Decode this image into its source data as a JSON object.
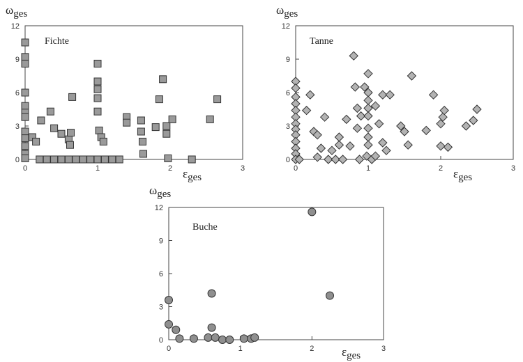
{
  "axes": {
    "y_symbol": "ω",
    "y_sub": "ges",
    "x_symbol": "ε",
    "x_sub": "ges"
  },
  "chart_data": [
    {
      "type": "scatter",
      "title": "Fichte",
      "marker": "square",
      "xlim": [
        0,
        3
      ],
      "ylim": [
        0,
        12
      ],
      "xticks": [
        0,
        1,
        2,
        3
      ],
      "yticks": [
        0,
        3,
        6,
        9,
        12
      ],
      "xlabel": "εges",
      "ylabel": "ωges",
      "points": [
        [
          0.0,
          10.5
        ],
        [
          0.0,
          9.2
        ],
        [
          0.0,
          8.6
        ],
        [
          0.0,
          6.0
        ],
        [
          0.0,
          4.8
        ],
        [
          0.0,
          4.2
        ],
        [
          0.0,
          3.8
        ],
        [
          0.0,
          2.5
        ],
        [
          0.0,
          1.9
        ],
        [
          0.0,
          1.2
        ],
        [
          0.0,
          0.5
        ],
        [
          0.0,
          0.1
        ],
        [
          0.1,
          2.0
        ],
        [
          0.15,
          1.6
        ],
        [
          0.22,
          3.5
        ],
        [
          0.35,
          4.3
        ],
        [
          0.4,
          2.8
        ],
        [
          0.5,
          2.3
        ],
        [
          0.6,
          1.8
        ],
        [
          0.62,
          1.3
        ],
        [
          0.63,
          2.4
        ],
        [
          0.65,
          5.6
        ],
        [
          0.2,
          0.0
        ],
        [
          0.3,
          0.0
        ],
        [
          0.4,
          0.0
        ],
        [
          0.5,
          0.0
        ],
        [
          0.6,
          0.0
        ],
        [
          0.7,
          0.0
        ],
        [
          0.8,
          0.0
        ],
        [
          0.9,
          0.0
        ],
        [
          1.0,
          0.0
        ],
        [
          1.1,
          0.0
        ],
        [
          1.2,
          0.0
        ],
        [
          1.3,
          0.0
        ],
        [
          1.0,
          8.6
        ],
        [
          1.0,
          7.0
        ],
        [
          1.0,
          6.3
        ],
        [
          1.0,
          5.5
        ],
        [
          1.0,
          4.3
        ],
        [
          1.02,
          2.6
        ],
        [
          1.05,
          2.0
        ],
        [
          1.08,
          1.6
        ],
        [
          1.4,
          3.8
        ],
        [
          1.4,
          3.3
        ],
        [
          1.6,
          3.5
        ],
        [
          1.6,
          2.5
        ],
        [
          1.62,
          1.6
        ],
        [
          1.63,
          0.5
        ],
        [
          1.8,
          2.9
        ],
        [
          1.85,
          5.4
        ],
        [
          1.9,
          7.2
        ],
        [
          1.95,
          3.0
        ],
        [
          1.95,
          2.3
        ],
        [
          1.97,
          0.1
        ],
        [
          2.03,
          3.6
        ],
        [
          2.3,
          0.0
        ],
        [
          2.55,
          3.6
        ],
        [
          2.65,
          5.4
        ]
      ]
    },
    {
      "type": "scatter",
      "title": "Tanne",
      "marker": "diamond",
      "xlim": [
        0,
        3
      ],
      "ylim": [
        0,
        12
      ],
      "xticks": [
        0,
        1,
        2,
        3
      ],
      "yticks": [
        0,
        3,
        6,
        9,
        12
      ],
      "xlabel": "εges",
      "ylabel": "ωges",
      "points": [
        [
          0.0,
          7.0
        ],
        [
          0.0,
          6.4
        ],
        [
          0.0,
          5.6
        ],
        [
          0.0,
          5.0
        ],
        [
          0.0,
          4.4
        ],
        [
          0.0,
          3.8
        ],
        [
          0.0,
          3.2
        ],
        [
          0.0,
          2.7
        ],
        [
          0.0,
          2.2
        ],
        [
          0.0,
          1.6
        ],
        [
          0.0,
          1.0
        ],
        [
          0.0,
          0.5
        ],
        [
          0.0,
          0.0
        ],
        [
          0.05,
          0.0
        ],
        [
          0.15,
          4.4
        ],
        [
          0.2,
          5.8
        ],
        [
          0.25,
          2.5
        ],
        [
          0.3,
          2.2
        ],
        [
          0.3,
          0.2
        ],
        [
          0.35,
          1.0
        ],
        [
          0.4,
          3.8
        ],
        [
          0.45,
          0.0
        ],
        [
          0.5,
          0.8
        ],
        [
          0.55,
          0.0
        ],
        [
          0.6,
          1.3
        ],
        [
          0.6,
          2.0
        ],
        [
          0.65,
          0.0
        ],
        [
          0.7,
          3.6
        ],
        [
          0.75,
          1.2
        ],
        [
          0.8,
          9.3
        ],
        [
          0.82,
          6.5
        ],
        [
          0.85,
          4.6
        ],
        [
          0.85,
          2.8
        ],
        [
          0.88,
          0.0
        ],
        [
          0.9,
          3.9
        ],
        [
          0.95,
          6.5
        ],
        [
          0.98,
          0.3
        ],
        [
          1.0,
          7.7
        ],
        [
          1.0,
          6.0
        ],
        [
          1.0,
          5.3
        ],
        [
          1.0,
          4.6
        ],
        [
          1.0,
          3.9
        ],
        [
          1.0,
          2.8
        ],
        [
          1.0,
          2.0
        ],
        [
          1.0,
          1.3
        ],
        [
          1.05,
          0.0
        ],
        [
          1.1,
          0.3
        ],
        [
          1.1,
          4.8
        ],
        [
          1.15,
          3.2
        ],
        [
          1.2,
          1.5
        ],
        [
          1.2,
          5.8
        ],
        [
          1.25,
          0.8
        ],
        [
          1.3,
          5.8
        ],
        [
          1.45,
          3.0
        ],
        [
          1.5,
          2.5
        ],
        [
          1.55,
          1.3
        ],
        [
          1.6,
          7.5
        ],
        [
          1.8,
          2.6
        ],
        [
          1.9,
          5.8
        ],
        [
          2.0,
          1.2
        ],
        [
          2.0,
          3.2
        ],
        [
          2.03,
          3.8
        ],
        [
          2.05,
          4.4
        ],
        [
          2.1,
          1.1
        ],
        [
          2.35,
          3.0
        ],
        [
          2.45,
          3.5
        ],
        [
          2.5,
          4.5
        ]
      ]
    },
    {
      "type": "scatter",
      "title": "Buche",
      "marker": "circle",
      "xlim": [
        0,
        3
      ],
      "ylim": [
        0,
        12
      ],
      "xticks": [
        0,
        1,
        2,
        3
      ],
      "yticks": [
        0,
        3,
        6,
        9,
        12
      ],
      "xlabel": "εges",
      "ylabel": "ωges",
      "points": [
        [
          0.0,
          3.6
        ],
        [
          0.0,
          1.4
        ],
        [
          0.1,
          0.9
        ],
        [
          0.15,
          0.1
        ],
        [
          0.35,
          0.1
        ],
        [
          0.55,
          0.2
        ],
        [
          0.6,
          4.2
        ],
        [
          0.6,
          1.1
        ],
        [
          0.65,
          0.2
        ],
        [
          0.75,
          0.0
        ],
        [
          0.85,
          0.0
        ],
        [
          1.05,
          0.1
        ],
        [
          1.15,
          0.1
        ],
        [
          1.2,
          0.2
        ],
        [
          2.0,
          11.6
        ],
        [
          2.25,
          4.0
        ]
      ]
    }
  ]
}
